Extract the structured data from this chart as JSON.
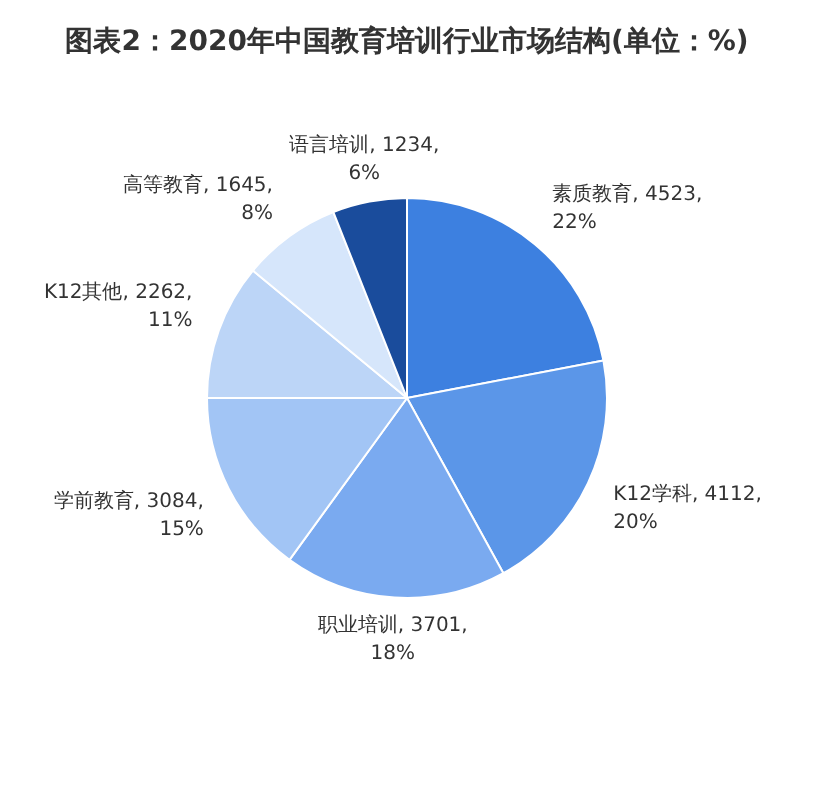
{
  "chart_data": {
    "type": "pie",
    "title": "图表2：2020年中国教育培训行业市场结构(单位：%)",
    "categories": [
      "素质教育",
      "K12学科",
      "职业培训",
      "学前教育",
      "K12其他",
      "高等教育",
      "语言培训"
    ],
    "values": [
      4523,
      4112,
      3701,
      3084,
      2262,
      1645,
      1234
    ],
    "value_labels": [
      "4523, 22%",
      "4112, 20%",
      "3701, 18%",
      "3084, 15%",
      "2262, 11%",
      "1645, 8%",
      "1234, 6%"
    ],
    "colors": [
      "#3d80e0",
      "#5b96e8",
      "#7aaaf0",
      "#a2c5f5",
      "#bcd5f7",
      "#d6e6fb",
      "#1a4c9c"
    ],
    "legend": false
  }
}
